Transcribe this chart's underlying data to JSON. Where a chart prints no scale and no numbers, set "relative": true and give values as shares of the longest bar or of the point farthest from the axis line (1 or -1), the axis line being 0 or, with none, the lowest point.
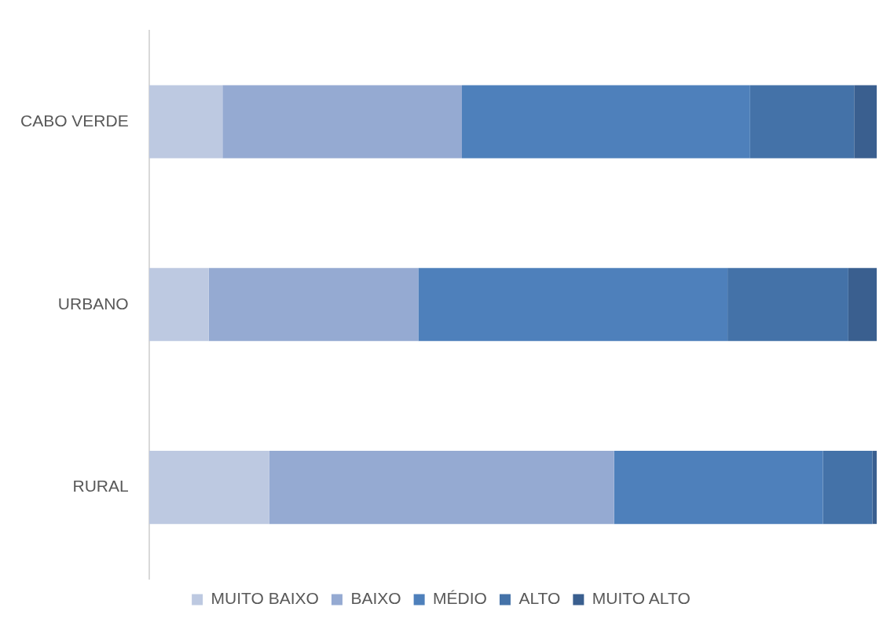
{
  "chart_data": {
    "type": "bar",
    "orientation": "horizontal",
    "stacked": true,
    "relative": true,
    "categories": [
      "CABO VERDE",
      "URBANO",
      "RURAL"
    ],
    "series": [
      {
        "name": "MUITO BAIXO",
        "color": "#bdc9e1",
        "values": [
          0.101,
          0.082,
          0.165
        ]
      },
      {
        "name": "BAIXO",
        "color": "#95aad2",
        "values": [
          0.329,
          0.288,
          0.474
        ]
      },
      {
        "name": "MÉDIO",
        "color": "#4e80bb",
        "values": [
          0.396,
          0.425,
          0.287
        ]
      },
      {
        "name": "ALTO",
        "color": "#4472a8",
        "values": [
          0.143,
          0.166,
          0.068
        ]
      },
      {
        "name": "MUITO ALTO",
        "color": "#3a5f8f",
        "values": [
          0.031,
          0.039,
          0.006
        ]
      }
    ],
    "legend": "bottom"
  }
}
